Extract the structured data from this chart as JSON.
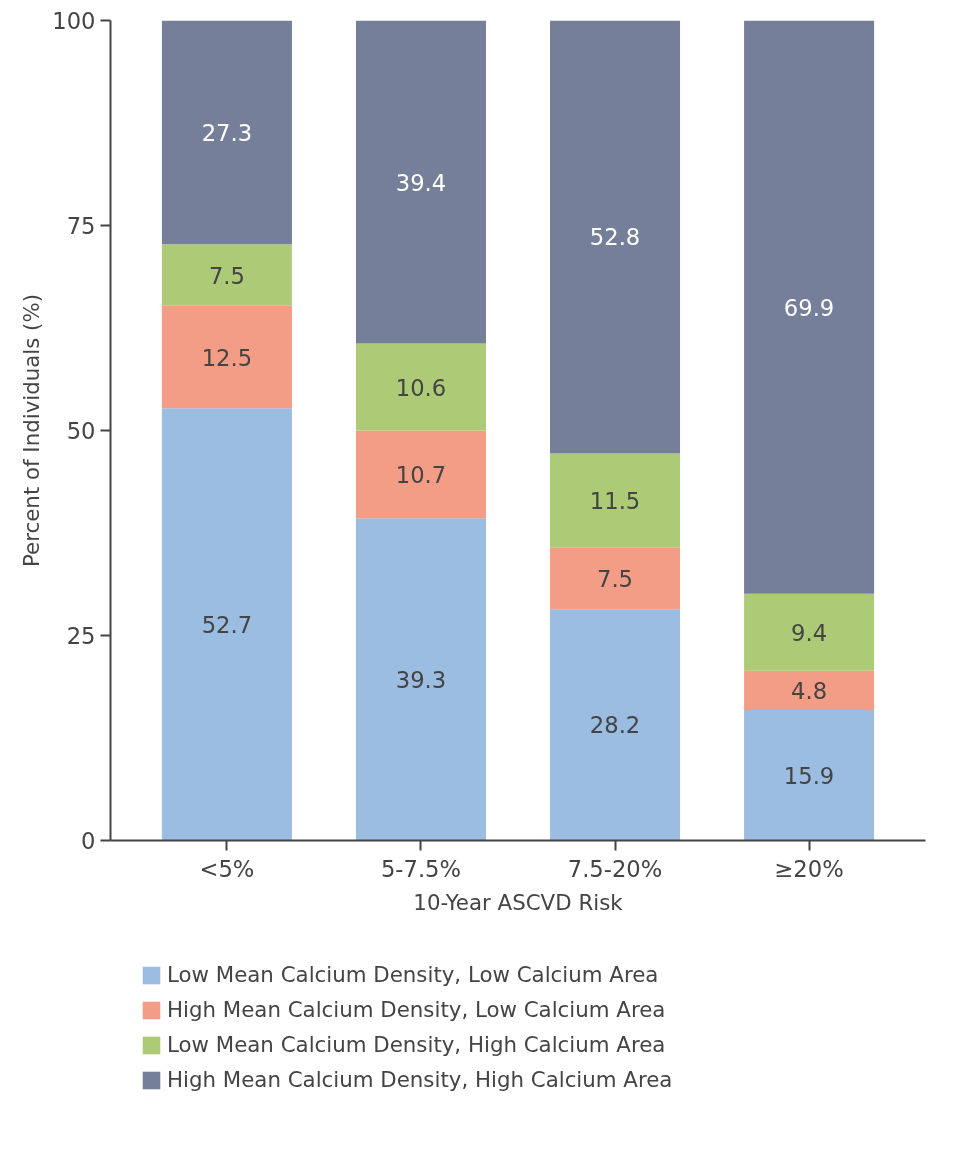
{
  "chart_data": {
    "type": "bar",
    "stacked": true,
    "xlabel": "10-Year ASCVD Risk",
    "ylabel": "Percent of Individuals (%)",
    "categories": [
      "<5%",
      "5-7.5%",
      "7.5-20%",
      "≥20%"
    ],
    "series": [
      {
        "name": "Low Mean Calcium Density, Low Calcium Area",
        "color": "#9bbde1",
        "values": [
          52.7,
          39.3,
          28.2,
          15.9
        ]
      },
      {
        "name": "High Mean Calcium Density, Low Calcium Area",
        "color": "#f49d86",
        "values": [
          12.5,
          10.7,
          7.5,
          4.8
        ]
      },
      {
        "name": "Low Mean Calcium Density, High Calcium Area",
        "color": "#adcb77",
        "values": [
          7.5,
          10.6,
          11.5,
          9.4
        ]
      },
      {
        "name": "High Mean Calcium Density, High Calcium Area",
        "color": "#767f99",
        "values": [
          27.3,
          39.4,
          52.8,
          69.9
        ]
      }
    ],
    "ylim": [
      0,
      100
    ],
    "yticks": [
      0,
      25,
      50,
      75,
      100
    ],
    "grid": false,
    "legend": "bottom",
    "data_labels": true
  }
}
